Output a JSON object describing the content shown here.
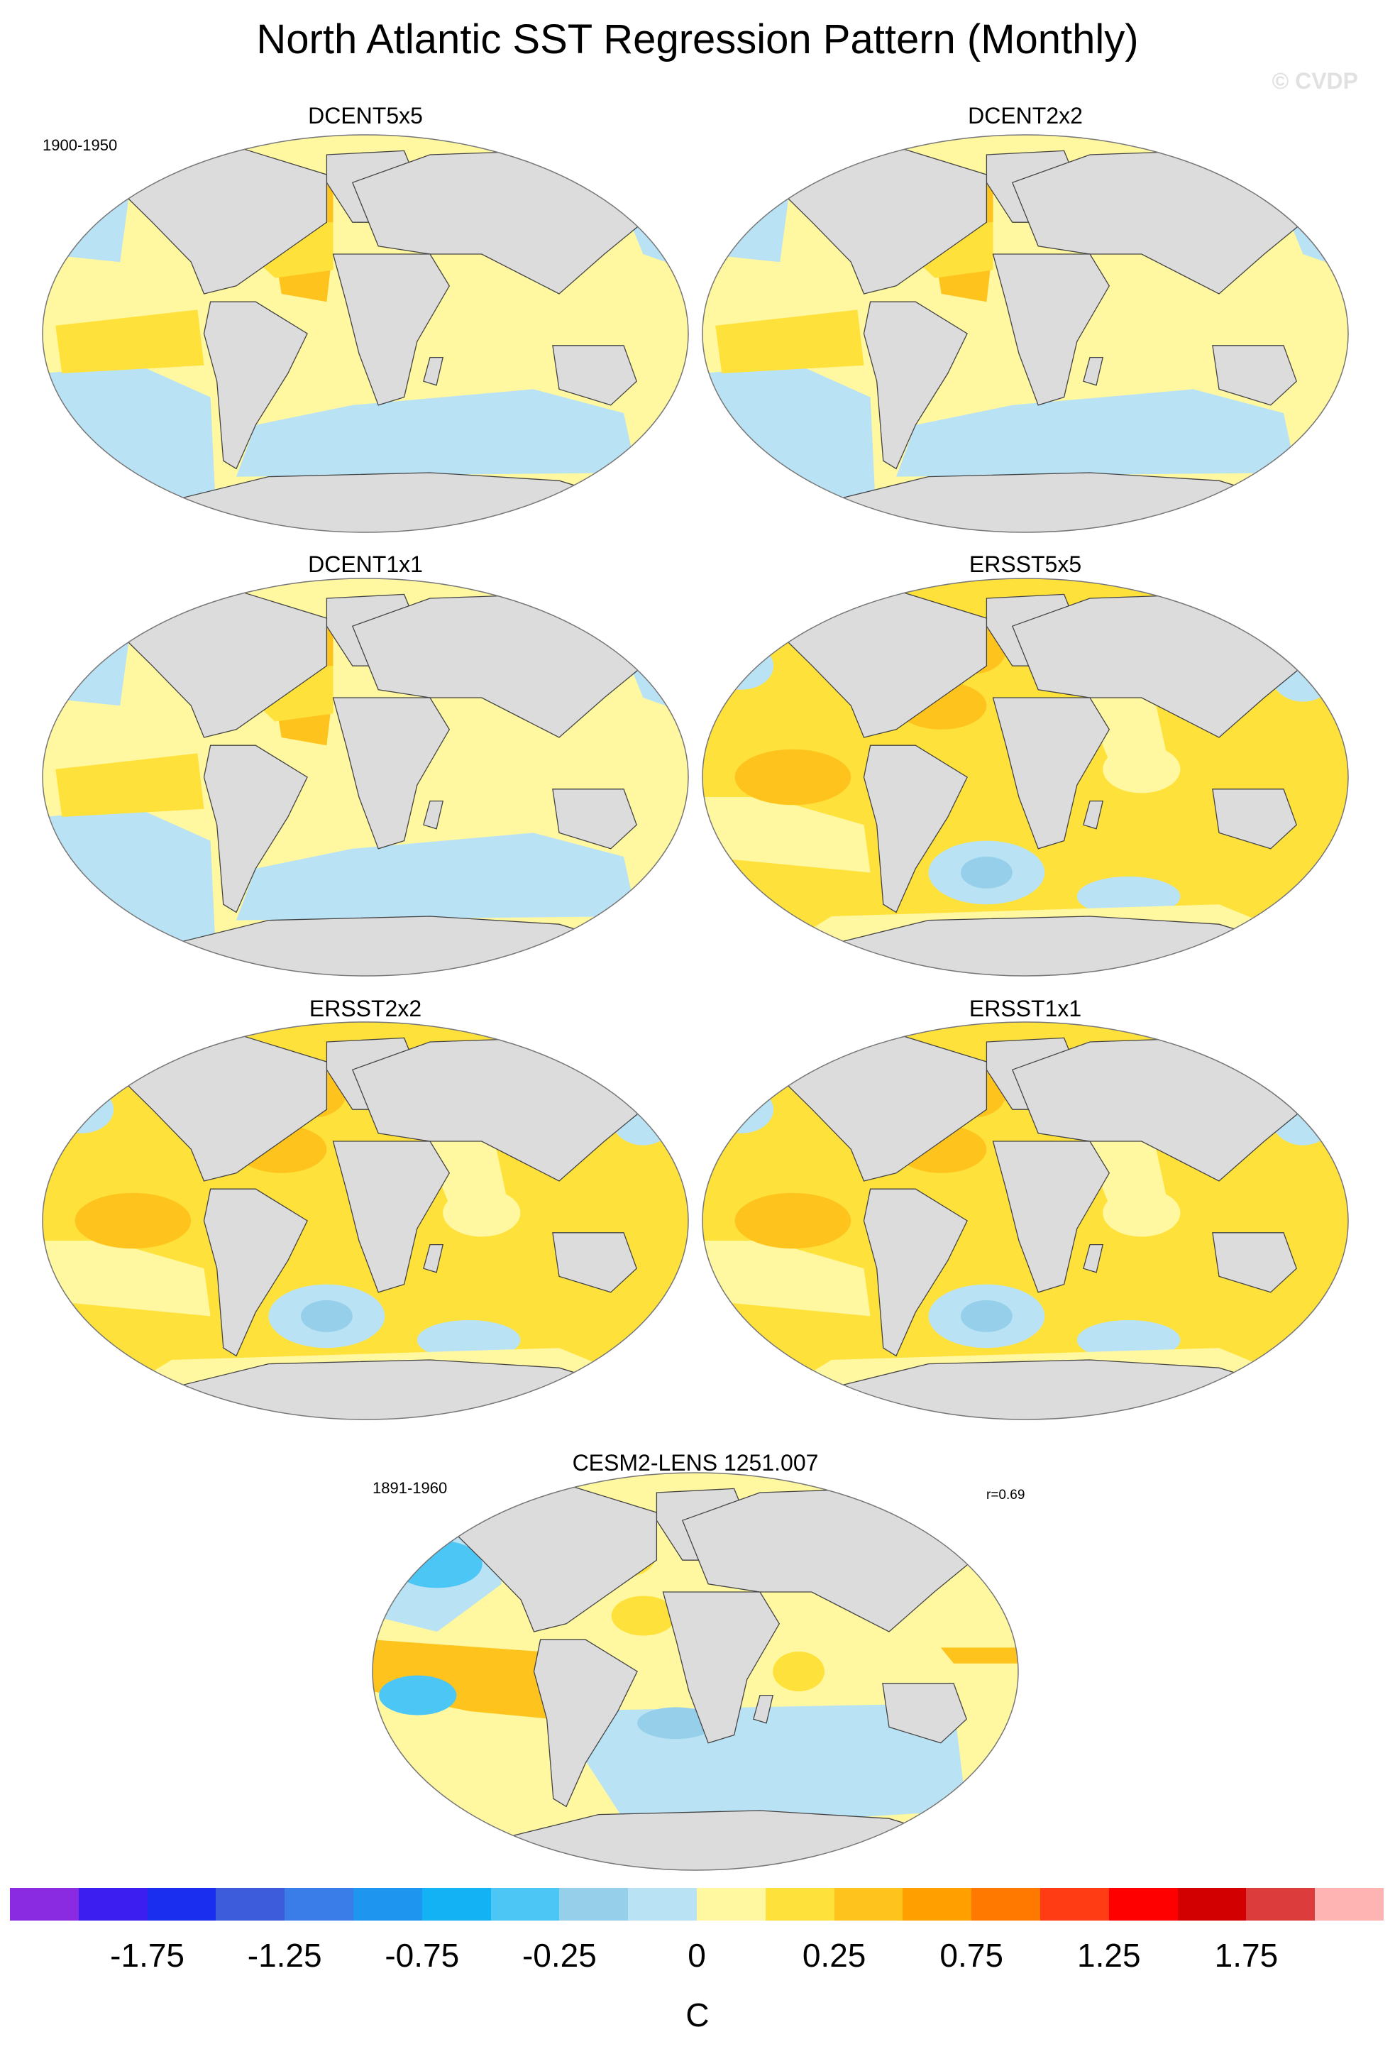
{
  "title": "North Atlantic SST Regression Pattern (Monthly)",
  "watermark": "© CVDP",
  "panels": [
    {
      "title": "DCENT5x5",
      "period": "1900-1950",
      "r": "",
      "variant": "coarse"
    },
    {
      "title": "DCENT2x2",
      "period": "",
      "r": "",
      "variant": "coarse"
    },
    {
      "title": "DCENT1x1",
      "period": "",
      "r": "",
      "variant": "coarse"
    },
    {
      "title": "ERSST5x5",
      "period": "",
      "r": "",
      "variant": "ersst"
    },
    {
      "title": "ERSST2x2",
      "period": "",
      "r": "",
      "variant": "ersst"
    },
    {
      "title": "ERSST1x1",
      "period": "",
      "r": "",
      "variant": "ersst"
    },
    {
      "title": "CESM2-LENS 1251.007",
      "period": "1891-1960",
      "r": "r=0.69",
      "variant": "cesm"
    }
  ],
  "colorbar": {
    "colors": [
      "#8a2be2",
      "#3c1ef0",
      "#1a2ef0",
      "#3c5cdc",
      "#3a7de8",
      "#1e96f0",
      "#12b2f5",
      "#4cc6f5",
      "#96cfea",
      "#b9e2f5",
      "#fff8a0",
      "#ffe13c",
      "#ffc31e",
      "#ffa000",
      "#ff7800",
      "#ff3c14",
      "#ff0000",
      "#d20000",
      "#dc3c3c",
      "#ffb4b4"
    ],
    "labels": [
      "-1.75",
      "-1.25",
      "-0.75",
      "-0.25",
      "0",
      "0.25",
      "0.75",
      "1.25",
      "1.75"
    ],
    "units": "C"
  }
}
